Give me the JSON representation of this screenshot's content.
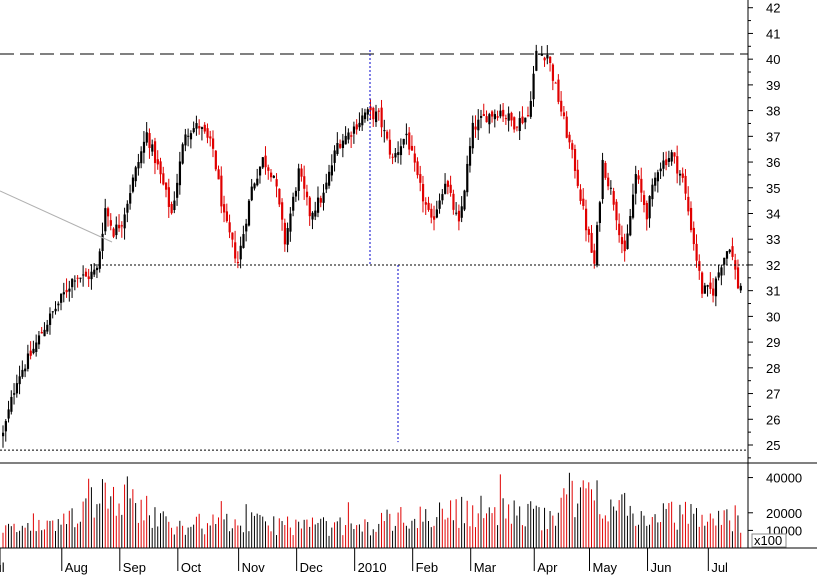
{
  "chart_data": {
    "type": "candlestick",
    "title": "",
    "xlabel": "",
    "ylabel": "",
    "price_axis": {
      "ylim": [
        24.3,
        42.3
      ],
      "ticks": [
        25,
        26,
        27,
        28,
        29,
        30,
        31,
        32,
        33,
        34,
        35,
        36,
        37,
        38,
        39,
        40,
        41,
        42
      ]
    },
    "volume_axis": {
      "ylim": [
        0,
        46000
      ],
      "ticks": [
        "10000",
        "20000",
        "40000"
      ],
      "unit_label": "x100"
    },
    "x_axis": {
      "ticks": [
        {
          "label": "Jul",
          "index": 0
        },
        {
          "label": "Aug",
          "index": 22
        },
        {
          "label": "Sep",
          "index": 43
        },
        {
          "label": "Oct",
          "index": 64
        },
        {
          "label": "Nov",
          "index": 86
        },
        {
          "label": "Dec",
          "index": 107
        },
        {
          "label": "2010",
          "index": 128
        },
        {
          "label": "Feb",
          "index": 149
        },
        {
          "label": "Mar",
          "index": 170
        },
        {
          "label": "Apr",
          "index": 193
        },
        {
          "label": "May",
          "index": 213
        },
        {
          "label": "Jun",
          "index": 234
        },
        {
          "label": "Jul",
          "index": 256
        }
      ],
      "n_bars": 270
    },
    "close_series": [
      [
        0,
        25.4
      ],
      [
        5,
        27.6
      ],
      [
        10,
        28.5
      ],
      [
        15,
        29.6
      ],
      [
        20,
        30.5
      ],
      [
        26,
        31.6
      ],
      [
        30,
        31.5
      ],
      [
        34,
        31.8
      ],
      [
        37,
        34.2
      ],
      [
        40,
        33.3
      ],
      [
        43,
        33.7
      ],
      [
        47,
        35.3
      ],
      [
        52,
        37.1
      ],
      [
        56,
        35.8
      ],
      [
        61,
        34.0
      ],
      [
        66,
        37.2
      ],
      [
        71,
        37.4
      ],
      [
        76,
        36.5
      ],
      [
        80,
        33.8
      ],
      [
        85,
        32.1
      ],
      [
        90,
        35.0
      ],
      [
        94,
        36.1
      ],
      [
        98,
        35.5
      ],
      [
        102,
        32.9
      ],
      [
        107,
        35.6
      ],
      [
        111,
        34.0
      ],
      [
        116,
        34.7
      ],
      [
        121,
        36.7
      ],
      [
        126,
        37.2
      ],
      [
        131,
        37.9
      ],
      [
        136,
        37.8
      ],
      [
        141,
        36.1
      ],
      [
        146,
        37.1
      ],
      [
        150,
        35.3
      ],
      [
        155,
        33.6
      ],
      [
        160,
        35.3
      ],
      [
        165,
        33.5
      ],
      [
        170,
        37.3
      ],
      [
        175,
        37.8
      ],
      [
        180,
        38.0
      ],
      [
        185,
        37.5
      ],
      [
        190,
        37.8
      ],
      [
        193,
        40.2
      ],
      [
        197,
        40.2
      ],
      [
        202,
        38.0
      ],
      [
        207,
        35.8
      ],
      [
        211,
        33.5
      ],
      [
        214,
        32.0
      ],
      [
        217,
        36.0
      ],
      [
        221,
        34.5
      ],
      [
        225,
        32.3
      ],
      [
        229,
        35.5
      ],
      [
        233,
        34.0
      ],
      [
        237,
        35.8
      ],
      [
        242,
        36.3
      ],
      [
        246,
        35.3
      ],
      [
        249,
        33.5
      ],
      [
        253,
        31.0
      ],
      [
        257,
        31.0
      ],
      [
        260,
        32.1
      ],
      [
        263,
        32.8
      ],
      [
        266,
        31.2
      ]
    ],
    "volume_series": [
      [
        0,
        12000
      ],
      [
        20,
        14000
      ],
      [
        38,
        44000
      ],
      [
        60,
        16000
      ],
      [
        90,
        17000
      ],
      [
        130,
        14000
      ],
      [
        140,
        19000
      ],
      [
        170,
        26000
      ],
      [
        195,
        22000
      ],
      [
        213,
        39000
      ],
      [
        230,
        21000
      ],
      [
        250,
        23000
      ],
      [
        266,
        18000
      ]
    ],
    "annotations": {
      "resistance_level": 40.2,
      "neckline_level": 32.0,
      "lower_level": 24.8
    }
  }
}
